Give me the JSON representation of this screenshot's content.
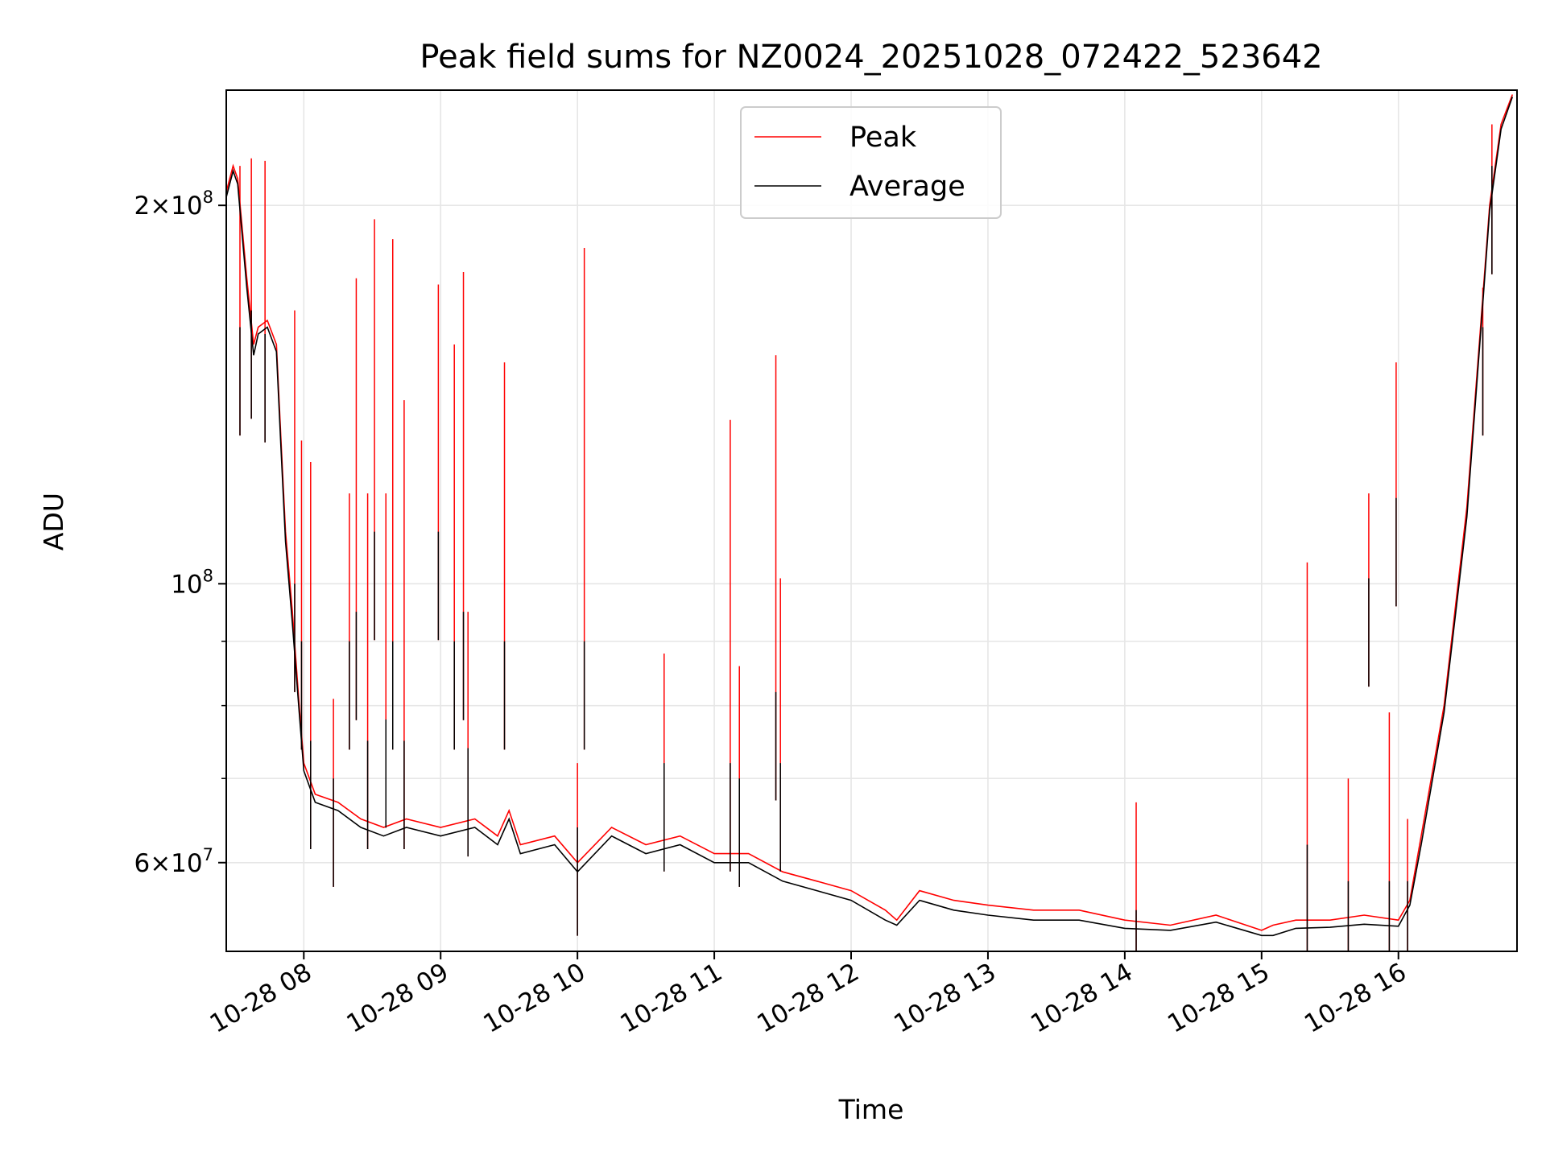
{
  "chart_data": {
    "type": "line",
    "title": "Peak field sums for NZ0024_20251028_072422_523642",
    "xlabel": "Time",
    "ylabel": "ADU",
    "yscale": "log",
    "grid": true,
    "legend": {
      "placement": "upper-center"
    },
    "xlim": [
      "2025-10-28T07:26",
      "2025-10-28T16:52"
    ],
    "ylim": [
      51000000,
      247000000
    ],
    "x_ticks": [
      {
        "at": "2025-10-28T08:00",
        "label": "10-28 08"
      },
      {
        "at": "2025-10-28T09:00",
        "label": "10-28 09"
      },
      {
        "at": "2025-10-28T10:00",
        "label": "10-28 10"
      },
      {
        "at": "2025-10-28T11:00",
        "label": "10-28 11"
      },
      {
        "at": "2025-10-28T12:00",
        "label": "10-28 12"
      },
      {
        "at": "2025-10-28T13:00",
        "label": "10-28 13"
      },
      {
        "at": "2025-10-28T14:00",
        "label": "10-28 14"
      },
      {
        "at": "2025-10-28T15:00",
        "label": "10-28 15"
      },
      {
        "at": "2025-10-28T16:00",
        "label": "10-28 16"
      }
    ],
    "y_major_ticks": [
      {
        "value": 60000000,
        "mantissa": "6",
        "exp": "7"
      },
      {
        "value": 100000000,
        "mantissa": "",
        "exp": "8"
      },
      {
        "value": 200000000,
        "mantissa": "2",
        "exp": "8"
      }
    ],
    "y_minor_ticks": [
      70000000,
      80000000,
      90000000
    ],
    "series": [
      {
        "name": "Peak",
        "color": "#ff0000",
        "x": [
          "2025-10-28T07:26",
          "2025-10-28T07:29",
          "2025-10-28T07:31",
          "2025-10-28T07:35",
          "2025-10-28T07:38",
          "2025-10-28T07:40",
          "2025-10-28T07:44",
          "2025-10-28T07:48",
          "2025-10-28T07:50",
          "2025-10-28T07:52",
          "2025-10-28T07:55",
          "2025-10-28T07:58",
          "2025-10-28T08:00",
          "2025-10-28T08:05",
          "2025-10-28T08:15",
          "2025-10-28T08:25",
          "2025-10-28T08:35",
          "2025-10-28T08:45",
          "2025-10-28T09:00",
          "2025-10-28T09:15",
          "2025-10-28T09:25",
          "2025-10-28T09:30",
          "2025-10-28T09:35",
          "2025-10-28T09:50",
          "2025-10-28T10:00",
          "2025-10-28T10:15",
          "2025-10-28T10:30",
          "2025-10-28T10:45",
          "2025-10-28T11:00",
          "2025-10-28T11:15",
          "2025-10-28T11:30",
          "2025-10-28T11:45",
          "2025-10-28T12:00",
          "2025-10-28T12:15",
          "2025-10-28T12:20",
          "2025-10-28T12:30",
          "2025-10-28T12:45",
          "2025-10-28T13:00",
          "2025-10-28T13:20",
          "2025-10-28T13:40",
          "2025-10-28T14:00",
          "2025-10-28T14:20",
          "2025-10-28T14:40",
          "2025-10-28T15:00",
          "2025-10-28T15:05",
          "2025-10-28T15:15",
          "2025-10-28T15:30",
          "2025-10-28T15:45",
          "2025-10-28T16:00",
          "2025-10-28T16:05",
          "2025-10-28T16:10",
          "2025-10-28T16:20",
          "2025-10-28T16:30",
          "2025-10-28T16:36",
          "2025-10-28T16:40",
          "2025-10-28T16:45",
          "2025-10-28T16:50"
        ],
        "y": [
          205000000,
          215000000,
          210000000,
          175000000,
          155000000,
          160000000,
          162000000,
          155000000,
          130000000,
          110000000,
          95000000,
          80000000,
          72000000,
          68000000,
          67000000,
          65000000,
          64000000,
          65000000,
          64000000,
          65000000,
          63000000,
          66000000,
          62000000,
          63000000,
          60000000,
          64000000,
          62000000,
          63000000,
          61000000,
          61000000,
          59000000,
          58000000,
          57000000,
          55000000,
          54000000,
          57000000,
          56000000,
          55500000,
          55000000,
          55000000,
          54000000,
          53500000,
          54500000,
          53000000,
          53500000,
          54000000,
          54000000,
          54500000,
          54000000,
          56000000,
          63000000,
          80000000,
          115000000,
          160000000,
          200000000,
          232000000,
          245000000
        ]
      },
      {
        "name": "Average",
        "color": "#000000",
        "x": [
          "2025-10-28T07:26",
          "2025-10-28T07:29",
          "2025-10-28T07:31",
          "2025-10-28T07:35",
          "2025-10-28T07:38",
          "2025-10-28T07:40",
          "2025-10-28T07:44",
          "2025-10-28T07:48",
          "2025-10-28T07:50",
          "2025-10-28T07:52",
          "2025-10-28T07:55",
          "2025-10-28T07:58",
          "2025-10-28T08:00",
          "2025-10-28T08:05",
          "2025-10-28T08:15",
          "2025-10-28T08:25",
          "2025-10-28T08:35",
          "2025-10-28T08:45",
          "2025-10-28T09:00",
          "2025-10-28T09:15",
          "2025-10-28T09:25",
          "2025-10-28T09:30",
          "2025-10-28T09:35",
          "2025-10-28T09:50",
          "2025-10-28T10:00",
          "2025-10-28T10:15",
          "2025-10-28T10:30",
          "2025-10-28T10:45",
          "2025-10-28T11:00",
          "2025-10-28T11:15",
          "2025-10-28T11:30",
          "2025-10-28T11:45",
          "2025-10-28T12:00",
          "2025-10-28T12:15",
          "2025-10-28T12:20",
          "2025-10-28T12:30",
          "2025-10-28T12:45",
          "2025-10-28T13:00",
          "2025-10-28T13:20",
          "2025-10-28T13:40",
          "2025-10-28T14:00",
          "2025-10-28T14:20",
          "2025-10-28T14:40",
          "2025-10-28T15:00",
          "2025-10-28T15:05",
          "2025-10-28T15:15",
          "2025-10-28T15:30",
          "2025-10-28T15:45",
          "2025-10-28T16:00",
          "2025-10-28T16:05",
          "2025-10-28T16:10",
          "2025-10-28T16:20",
          "2025-10-28T16:30",
          "2025-10-28T16:36",
          "2025-10-28T16:40",
          "2025-10-28T16:45",
          "2025-10-28T16:50"
        ],
        "y": [
          203000000,
          213000000,
          208000000,
          172000000,
          152000000,
          158000000,
          160000000,
          153000000,
          128000000,
          108000000,
          93000000,
          79000000,
          71000000,
          67000000,
          66000000,
          64000000,
          63000000,
          64000000,
          63000000,
          64000000,
          62000000,
          65000000,
          61000000,
          62000000,
          59000000,
          63000000,
          61000000,
          62000000,
          60000000,
          60000000,
          58000000,
          57000000,
          56000000,
          54000000,
          53500000,
          56000000,
          55000000,
          54500000,
          54000000,
          54000000,
          53200000,
          53000000,
          53800000,
          52500000,
          52500000,
          53200000,
          53300000,
          53600000,
          53400000,
          55500000,
          62000000,
          79000000,
          113000000,
          158000000,
          198000000,
          230000000,
          244000000
        ]
      }
    ],
    "spikes": [
      {
        "x": "2025-10-28T07:32",
        "peak": 215000000,
        "avg": 160000000
      },
      {
        "x": "2025-10-28T07:37",
        "peak": 218000000,
        "avg": 165000000
      },
      {
        "x": "2025-10-28T07:43",
        "peak": 217000000,
        "avg": 158000000
      },
      {
        "x": "2025-10-28T07:56",
        "peak": 165000000,
        "avg": 100000000
      },
      {
        "x": "2025-10-28T07:59",
        "peak": 130000000,
        "avg": 90000000
      },
      {
        "x": "2025-10-28T08:03",
        "peak": 125000000,
        "avg": 75000000
      },
      {
        "x": "2025-10-28T08:13",
        "peak": 81000000,
        "avg": 70000000
      },
      {
        "x": "2025-10-28T08:20",
        "peak": 118000000,
        "avg": 90000000
      },
      {
        "x": "2025-10-28T08:23",
        "peak": 175000000,
        "avg": 95000000
      },
      {
        "x": "2025-10-28T08:28",
        "peak": 118000000,
        "avg": 75000000
      },
      {
        "x": "2025-10-28T08:31",
        "peak": 195000000,
        "avg": 110000000
      },
      {
        "x": "2025-10-28T08:36",
        "peak": 118000000,
        "avg": 78000000
      },
      {
        "x": "2025-10-28T08:39",
        "peak": 188000000,
        "avg": 90000000
      },
      {
        "x": "2025-10-28T08:44",
        "peak": 140000000,
        "avg": 75000000
      },
      {
        "x": "2025-10-28T08:59",
        "peak": 173000000,
        "avg": 110000000
      },
      {
        "x": "2025-10-28T09:06",
        "peak": 155000000,
        "avg": 90000000
      },
      {
        "x": "2025-10-28T09:10",
        "peak": 177000000,
        "avg": 95000000
      },
      {
        "x": "2025-10-28T09:12",
        "peak": 95000000,
        "avg": 74000000
      },
      {
        "x": "2025-10-28T09:28",
        "peak": 150000000,
        "avg": 90000000
      },
      {
        "x": "2025-10-28T10:00",
        "peak": 72000000,
        "avg": 64000000
      },
      {
        "x": "2025-10-28T10:03",
        "peak": 185000000,
        "avg": 90000000
      },
      {
        "x": "2025-10-28T10:38",
        "peak": 88000000,
        "avg": 72000000
      },
      {
        "x": "2025-10-28T11:07",
        "peak": 135000000,
        "avg": 72000000
      },
      {
        "x": "2025-10-28T11:11",
        "peak": 86000000,
        "avg": 70000000
      },
      {
        "x": "2025-10-28T11:27",
        "peak": 152000000,
        "avg": 82000000
      },
      {
        "x": "2025-10-28T11:29",
        "peak": 101000000,
        "avg": 72000000
      },
      {
        "x": "2025-10-28T14:05",
        "peak": 67000000,
        "avg": 55000000
      },
      {
        "x": "2025-10-28T15:20",
        "peak": 104000000,
        "avg": 62000000
      },
      {
        "x": "2025-10-28T15:38",
        "peak": 70000000,
        "avg": 58000000
      },
      {
        "x": "2025-10-28T15:47",
        "peak": 118000000,
        "avg": 101000000
      },
      {
        "x": "2025-10-28T15:56",
        "peak": 79000000,
        "avg": 58000000
      },
      {
        "x": "2025-10-28T15:59",
        "peak": 150000000,
        "avg": 117000000
      },
      {
        "x": "2025-10-28T16:04",
        "peak": 65000000,
        "avg": 58000000
      },
      {
        "x": "2025-10-28T16:37",
        "peak": 172000000,
        "avg": 160000000
      },
      {
        "x": "2025-10-28T16:41",
        "peak": 232000000,
        "avg": 215000000
      }
    ]
  }
}
